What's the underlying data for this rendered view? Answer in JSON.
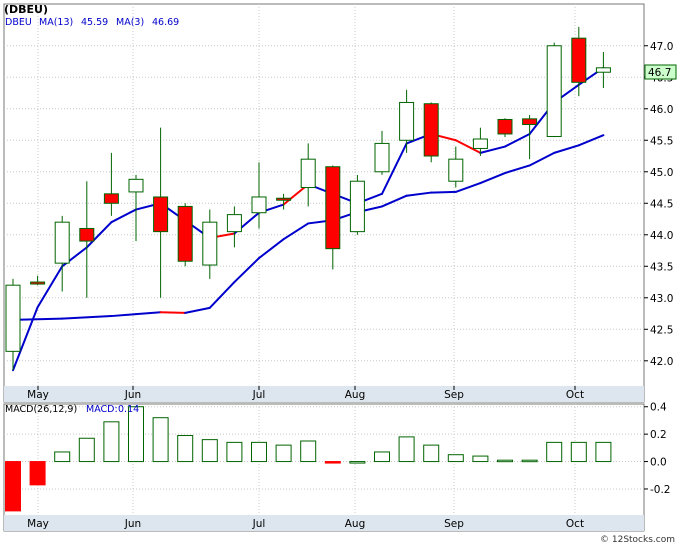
{
  "title": "(DBEU)",
  "footer": "© 12Stocks.com",
  "colors": {
    "background": "#ffffff",
    "grid": "#c8c8c8",
    "axis_band": "#dde6ee",
    "up_candle": "#ffffff",
    "down_candle": "#ff0000",
    "candle_edge": "#006400",
    "ma": "#0000cc",
    "ma_down": "#ff0000",
    "macd_bar_edge": "#006400",
    "last_price_bg": "#ccffcc"
  },
  "chart_data": [
    {
      "type": "candlestick",
      "legend": [
        {
          "label": "DBEU",
          "value": ""
        },
        {
          "label": "MA(13)",
          "value": "45.59"
        },
        {
          "label": "MA(3)",
          "value": "46.69"
        }
      ],
      "last_price_label": "46.7",
      "x_ticks": [
        "May",
        "Jun",
        "Jul",
        "Aug",
        "Sep",
        "Oct"
      ],
      "y_ticks": [
        "42.0",
        "42.5",
        "43.0",
        "43.5",
        "44.0",
        "44.5",
        "45.0",
        "45.5",
        "46.0",
        "46.5",
        "47.0"
      ],
      "ylim": [
        41.6,
        47.25
      ],
      "grid": true,
      "candles": [
        {
          "o": 42.15,
          "h": 43.3,
          "l": 41.85,
          "c": 43.2
        },
        {
          "o": 43.25,
          "h": 43.35,
          "l": 43.2,
          "c": 43.22
        },
        {
          "o": 43.55,
          "h": 44.3,
          "l": 43.1,
          "c": 44.2
        },
        {
          "o": 44.1,
          "h": 44.85,
          "l": 43.0,
          "c": 43.9
        },
        {
          "o": 44.65,
          "h": 45.3,
          "l": 44.3,
          "c": 44.5
        },
        {
          "o": 44.68,
          "h": 44.95,
          "l": 43.9,
          "c": 44.88
        },
        {
          "o": 44.6,
          "h": 45.7,
          "l": 43.0,
          "c": 44.05
        },
        {
          "o": 44.45,
          "h": 44.5,
          "l": 43.5,
          "c": 43.58
        },
        {
          "o": 43.52,
          "h": 44.4,
          "l": 43.3,
          "c": 44.2
        },
        {
          "o": 44.05,
          "h": 44.45,
          "l": 43.8,
          "c": 44.32
        },
        {
          "o": 44.35,
          "h": 45.15,
          "l": 44.1,
          "c": 44.6
        },
        {
          "o": 44.58,
          "h": 44.65,
          "l": 44.4,
          "c": 44.55
        },
        {
          "o": 44.75,
          "h": 45.45,
          "l": 44.45,
          "c": 45.2
        },
        {
          "o": 45.08,
          "h": 45.1,
          "l": 43.45,
          "c": 43.78
        },
        {
          "o": 44.05,
          "h": 44.95,
          "l": 44.0,
          "c": 44.85
        },
        {
          "o": 45.0,
          "h": 45.65,
          "l": 44.95,
          "c": 45.45
        },
        {
          "o": 45.5,
          "h": 46.3,
          "l": 45.3,
          "c": 46.1
        },
        {
          "o": 46.08,
          "h": 46.1,
          "l": 45.15,
          "c": 45.25
        },
        {
          "o": 44.85,
          "h": 45.4,
          "l": 44.75,
          "c": 45.2
        },
        {
          "o": 45.37,
          "h": 45.7,
          "l": 45.25,
          "c": 45.52
        },
        {
          "o": 45.83,
          "h": 45.85,
          "l": 45.55,
          "c": 45.6
        },
        {
          "o": 45.84,
          "h": 45.9,
          "l": 45.2,
          "c": 45.75
        },
        {
          "o": 45.56,
          "h": 47.05,
          "l": 45.55,
          "c": 47.0
        },
        {
          "o": 47.12,
          "h": 47.3,
          "l": 46.2,
          "c": 46.42
        },
        {
          "o": 46.58,
          "h": 46.9,
          "l": 46.33,
          "c": 46.65
        }
      ],
      "ma3": [
        41.85,
        42.85,
        43.5,
        43.8,
        44.2,
        44.4,
        44.5,
        null,
        43.95,
        44.02,
        44.35,
        44.48,
        44.8,
        null,
        44.5,
        44.65,
        45.45,
        45.6,
        45.5,
        45.3,
        45.4,
        45.6,
        46.1,
        46.38,
        46.65
      ],
      "ma3_down_ranges": [
        [
          7,
          9
        ],
        [
          11,
          12
        ],
        [
          17,
          19
        ]
      ],
      "ma13": [
        42.65,
        null,
        42.67,
        null,
        42.71,
        42.74,
        42.77,
        42.76,
        42.84,
        43.25,
        43.63,
        43.93,
        44.18,
        44.23,
        44.36,
        44.45,
        44.62,
        44.67,
        44.68,
        44.82,
        44.98,
        45.1,
        45.3,
        45.42,
        45.58
      ],
      "ma13_down_ranges": [
        [
          6,
          7
        ]
      ]
    },
    {
      "type": "bar",
      "legend": [
        {
          "label": "MACD(26,12,9)",
          "value": ""
        },
        {
          "label": "MACD:",
          "value": "0.14"
        }
      ],
      "y_ticks": [
        "0.4",
        "0.2",
        "0.0",
        "-0.2"
      ],
      "ylim": [
        -0.39,
        0.42
      ],
      "grid": true,
      "values": [
        -0.36,
        -0.17,
        0.07,
        0.17,
        0.29,
        0.4,
        0.32,
        0.19,
        0.16,
        0.14,
        0.14,
        0.12,
        0.15,
        -0.01,
        0.0,
        0.07,
        0.18,
        0.12,
        0.05,
        0.04,
        0.01,
        0.01,
        0.14,
        0.14,
        0.14
      ]
    }
  ]
}
